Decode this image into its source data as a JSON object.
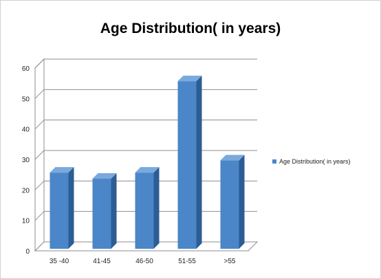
{
  "chart_data": {
    "type": "bar",
    "title": "Age Distribution( in years)",
    "categories": [
      "35 -40",
      "41-45",
      "46-50",
      "51-55",
      ">55"
    ],
    "series": [
      {
        "name": "Age Distribution( in years)",
        "values": [
          25,
          23,
          25,
          55,
          29
        ]
      }
    ],
    "ylim": [
      0,
      60
    ],
    "yticks": [
      0,
      10,
      20,
      30,
      40,
      50,
      60
    ],
    "grid": true,
    "three_d": true,
    "legend_position": "right",
    "bar_color": "#4a86c8",
    "bar_side_color": "#2c5d94",
    "bar_top_color": "#7aa9dc"
  }
}
